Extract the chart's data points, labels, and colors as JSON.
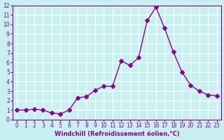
{
  "x": [
    0,
    1,
    2,
    3,
    4,
    5,
    6,
    7,
    8,
    9,
    10,
    11,
    12,
    13,
    14,
    15,
    16,
    17,
    18,
    19,
    20,
    21,
    22,
    23
  ],
  "y": [
    1.0,
    1.0,
    1.1,
    1.0,
    0.7,
    0.6,
    1.0,
    2.3,
    2.4,
    3.1,
    3.5,
    3.5,
    6.2,
    5.7,
    6.5,
    10.4,
    11.8,
    9.6,
    7.1,
    5.0,
    3.6,
    3.0,
    2.6,
    2.5
  ],
  "line_color": "#8B008B",
  "marker": "D",
  "marker_size": 3,
  "bg_color": "#c8f0f0",
  "grid_color": "#ffffff",
  "xlabel": "Windchill (Refroidissement éolien,°C)",
  "xlabel_color": "#8B008B",
  "tick_color": "#8B008B",
  "xlim": [
    -0.5,
    23.5
  ],
  "ylim": [
    0,
    12
  ],
  "xticks": [
    0,
    1,
    2,
    3,
    4,
    5,
    6,
    7,
    8,
    9,
    10,
    11,
    12,
    13,
    14,
    15,
    16,
    17,
    18,
    19,
    20,
    21,
    22,
    23
  ],
  "yticks": [
    0,
    1,
    2,
    3,
    4,
    5,
    6,
    7,
    8,
    9,
    10,
    11,
    12
  ]
}
